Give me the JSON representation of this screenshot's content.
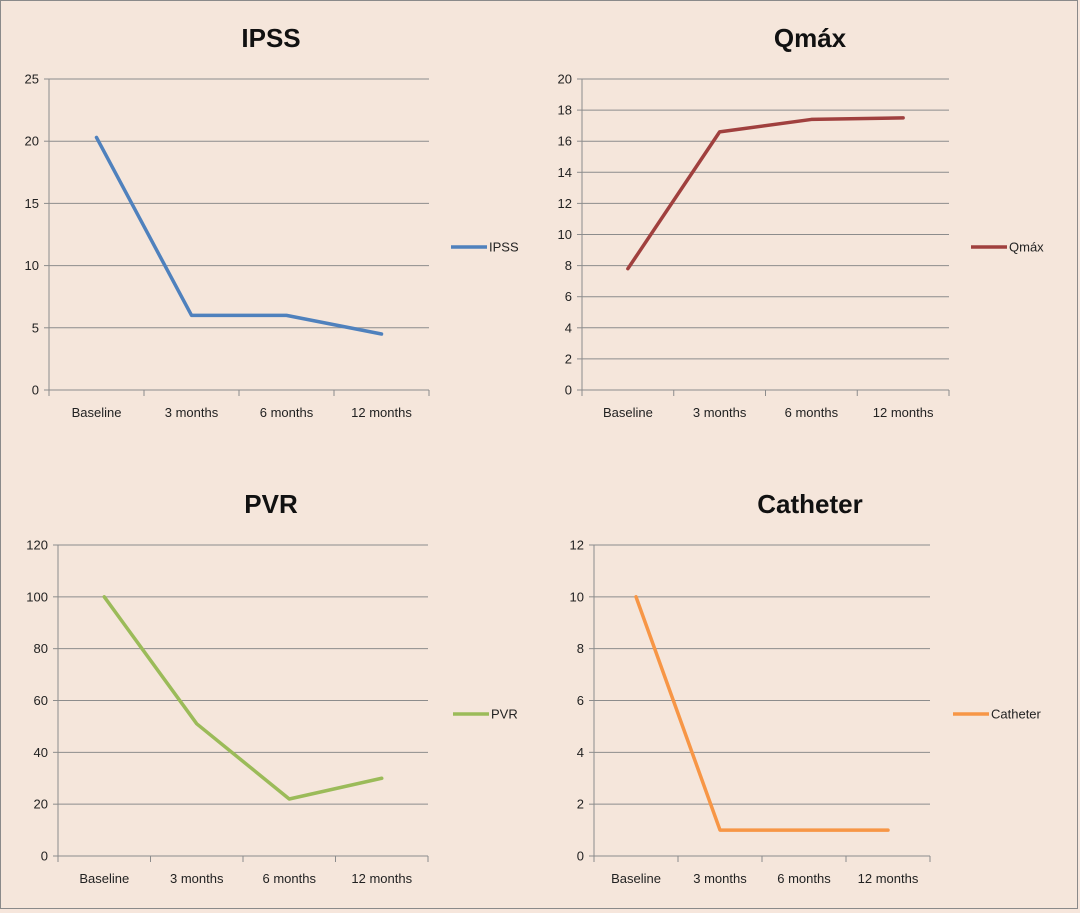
{
  "chart_data": [
    {
      "type": "line",
      "title": "IPSS",
      "categories": [
        "Baseline",
        "3 months",
        "6 months",
        "12 months"
      ],
      "series": [
        {
          "name": "IPSS",
          "values": [
            20.3,
            6,
            6,
            4.5
          ],
          "color": "#4f81bd"
        }
      ],
      "ylim": [
        0,
        25
      ],
      "yticks": [
        "0",
        "5",
        "10",
        "15",
        "20",
        "25"
      ],
      "grid": true,
      "legend": "right"
    },
    {
      "type": "line",
      "title": "Qmáx",
      "categories": [
        "Baseline",
        "3 months",
        "6 months",
        "12 months"
      ],
      "series": [
        {
          "name": "Qmáx",
          "values": [
            7.8,
            16.6,
            17.4,
            17.5
          ],
          "color": "#a0403e"
        }
      ],
      "ylim": [
        0,
        20
      ],
      "yticks": [
        "0",
        "2",
        "4",
        "6",
        "8",
        "10",
        "12",
        "14",
        "16",
        "18",
        "20"
      ],
      "grid": true,
      "legend": "right"
    },
    {
      "type": "line",
      "title": "PVR",
      "categories": [
        "Baseline",
        "3 months",
        "6 months",
        "12 months"
      ],
      "series": [
        {
          "name": "PVR",
          "values": [
            100,
            51,
            22,
            30
          ],
          "color": "#9bbb59"
        }
      ],
      "ylim": [
        0,
        120
      ],
      "yticks": [
        "0",
        "20",
        "40",
        "60",
        "80",
        "100",
        "120"
      ],
      "grid": true,
      "legend": "right"
    },
    {
      "type": "line",
      "title": "Catheter",
      "categories": [
        "Baseline",
        "3 months",
        "6 months",
        "12 months"
      ],
      "series": [
        {
          "name": "Catheter",
          "values": [
            10,
            1,
            1,
            1
          ],
          "color": "#f79646"
        }
      ],
      "ylim": [
        0,
        12
      ],
      "yticks": [
        "0",
        "2",
        "4",
        "6",
        "8",
        "10",
        "12"
      ],
      "grid": true,
      "legend": "right"
    }
  ]
}
